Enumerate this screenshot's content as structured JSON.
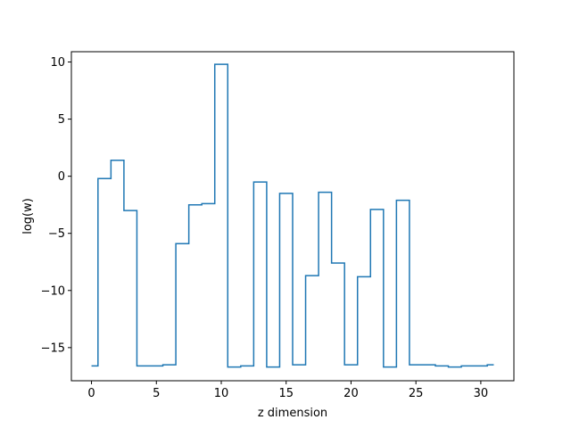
{
  "chart_data": {
    "type": "line",
    "drawstyle": "steps-mid",
    "title": "",
    "xlabel": "z dimension",
    "ylabel": "log(w)",
    "xlim": [
      -1.55,
      32.55
    ],
    "ylim": [
      -17.9,
      10.9
    ],
    "xticks": [
      0,
      5,
      10,
      15,
      20,
      25,
      30
    ],
    "yticks": [
      -15,
      -10,
      -5,
      0,
      5,
      10
    ],
    "grid": false,
    "legend": "none",
    "series": [
      {
        "color": "#1f77b4",
        "x": [
          0,
          1,
          2,
          3,
          4,
          5,
          6,
          7,
          8,
          9,
          10,
          11,
          12,
          13,
          14,
          15,
          16,
          17,
          18,
          19,
          20,
          21,
          22,
          23,
          24,
          25,
          26,
          27,
          28,
          29,
          30,
          31
        ],
        "values": [
          -16.6,
          -0.2,
          1.4,
          -3.0,
          -16.6,
          -16.6,
          -16.5,
          -5.9,
          -2.5,
          -2.4,
          9.8,
          -16.7,
          -16.6,
          -0.5,
          -16.7,
          -1.5,
          -16.5,
          -8.7,
          -1.4,
          -7.6,
          -16.5,
          -8.8,
          -2.9,
          -16.7,
          -2.1,
          -16.5,
          -16.5,
          -16.6,
          -16.7,
          -16.6,
          -16.6,
          -16.5
        ]
      }
    ]
  }
}
